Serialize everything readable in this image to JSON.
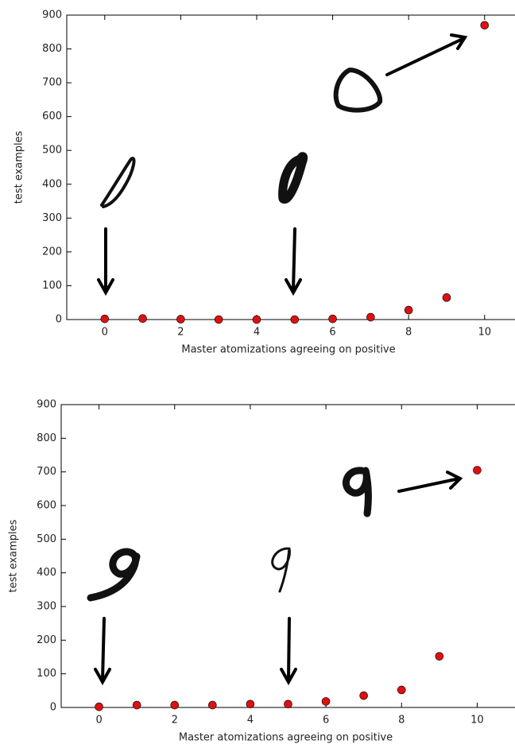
{
  "chart_data": [
    {
      "type": "scatter",
      "x": [
        0,
        1,
        2,
        3,
        4,
        5,
        6,
        7,
        8,
        9,
        10
      ],
      "values": [
        2,
        3,
        1,
        0,
        0,
        0,
        2,
        7,
        28,
        65,
        870
      ],
      "color": "#dd1111",
      "xlabel": "Master atomizations agreeing on positive",
      "ylabel": "test examples",
      "xlim": [
        -1,
        10.8
      ],
      "xticks": [
        0,
        2,
        4,
        6,
        8,
        10
      ],
      "ylim": [
        0,
        900
      ],
      "yticks": [
        0,
        100,
        200,
        300,
        400,
        500,
        600,
        700,
        800,
        900
      ],
      "grid": false
    },
    {
      "type": "scatter",
      "x": [
        0,
        1,
        2,
        3,
        4,
        5,
        6,
        7,
        8,
        9,
        10
      ],
      "values": [
        2,
        7,
        7,
        7,
        10,
        10,
        18,
        35,
        52,
        152,
        705
      ],
      "color": "#dd1111",
      "xlabel": "Master atomizations agreeing on positive",
      "ylabel": "test examples",
      "xlim": [
        -1,
        11
      ],
      "xticks": [
        0,
        2,
        4,
        6,
        8,
        10
      ],
      "ylim": [
        0,
        900
      ],
      "yticks": [
        0,
        100,
        200,
        300,
        400,
        500,
        600,
        700,
        800,
        900
      ],
      "grid": false
    }
  ]
}
